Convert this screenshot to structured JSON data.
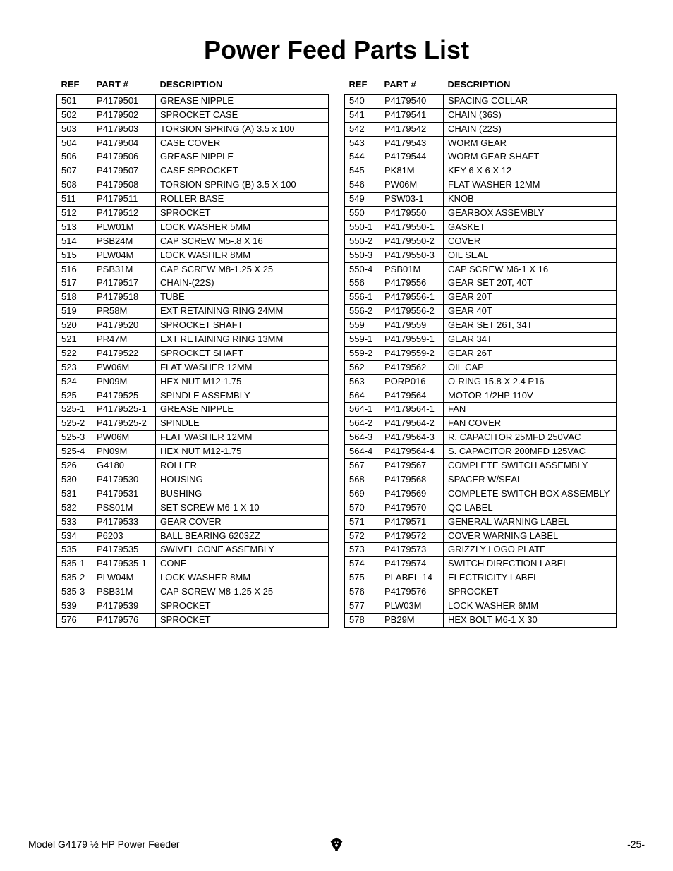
{
  "title": "Power Feed Parts List",
  "columns": {
    "ref": "REF",
    "part": "PART #",
    "desc": "DESCRIPTION"
  },
  "table_style": {
    "border_color": "#000000",
    "font_size_body": 13,
    "font_size_header": 13,
    "title_fontsize": 36,
    "background": "#ffffff",
    "col_widths": {
      "ref": 50,
      "part": 90,
      "desc": 245
    }
  },
  "left_rows": [
    {
      "ref": "501",
      "part": "P4179501",
      "desc": "GREASE NIPPLE"
    },
    {
      "ref": "502",
      "part": "P4179502",
      "desc": "SPROCKET CASE"
    },
    {
      "ref": "503",
      "part": "P4179503",
      "desc": "TORSION SPRING (A) 3.5 x 100"
    },
    {
      "ref": "504",
      "part": "P4179504",
      "desc": "CASE COVER"
    },
    {
      "ref": "506",
      "part": "P4179506",
      "desc": "GREASE NIPPLE"
    },
    {
      "ref": "507",
      "part": "P4179507",
      "desc": "CASE SPROCKET"
    },
    {
      "ref": "508",
      "part": "P4179508",
      "desc": "TORSION SPRING (B) 3.5 X 100"
    },
    {
      "ref": "511",
      "part": "P4179511",
      "desc": "ROLLER BASE"
    },
    {
      "ref": "512",
      "part": "P4179512",
      "desc": "SPROCKET"
    },
    {
      "ref": "513",
      "part": "PLW01M",
      "desc": "LOCK WASHER 5MM"
    },
    {
      "ref": "514",
      "part": "PSB24M",
      "desc": "CAP SCREW M5-.8 X 16"
    },
    {
      "ref": "515",
      "part": "PLW04M",
      "desc": "LOCK WASHER 8MM"
    },
    {
      "ref": "516",
      "part": "PSB31M",
      "desc": "CAP SCREW M8-1.25 X 25"
    },
    {
      "ref": "517",
      "part": "P4179517",
      "desc": "CHAIN-(22S)"
    },
    {
      "ref": "518",
      "part": "P4179518",
      "desc": "TUBE"
    },
    {
      "ref": "519",
      "part": "PR58M",
      "desc": "EXT RETAINING RING 24MM"
    },
    {
      "ref": "520",
      "part": "P4179520",
      "desc": "SPROCKET SHAFT"
    },
    {
      "ref": "521",
      "part": "PR47M",
      "desc": "EXT RETAINING RING 13MM"
    },
    {
      "ref": "522",
      "part": "P4179522",
      "desc": "SPROCKET SHAFT"
    },
    {
      "ref": "523",
      "part": "PW06M",
      "desc": "FLAT WASHER 12MM"
    },
    {
      "ref": "524",
      "part": "PN09M",
      "desc": "HEX NUT M12-1.75"
    },
    {
      "ref": "525",
      "part": "P4179525",
      "desc": "SPINDLE ASSEMBLY"
    },
    {
      "ref": "525-1",
      "part": "P4179525-1",
      "desc": "GREASE NIPPLE"
    },
    {
      "ref": "525-2",
      "part": "P4179525-2",
      "desc": "SPINDLE"
    },
    {
      "ref": "525-3",
      "part": "PW06M",
      "desc": "FLAT WASHER 12MM"
    },
    {
      "ref": "525-4",
      "part": "PN09M",
      "desc": "HEX NUT M12-1.75"
    },
    {
      "ref": "526",
      "part": "G4180",
      "desc": "ROLLER"
    },
    {
      "ref": "530",
      "part": "P4179530",
      "desc": "HOUSING"
    },
    {
      "ref": "531",
      "part": "P4179531",
      "desc": "BUSHING"
    },
    {
      "ref": "532",
      "part": "PSS01M",
      "desc": "SET SCREW M6-1 X 10"
    },
    {
      "ref": "533",
      "part": "P4179533",
      "desc": "GEAR COVER"
    },
    {
      "ref": "534",
      "part": "P6203",
      "desc": "BALL BEARING 6203ZZ"
    },
    {
      "ref": "535",
      "part": "P4179535",
      "desc": "SWIVEL CONE ASSEMBLY"
    },
    {
      "ref": "535-1",
      "part": "P4179535-1",
      "desc": "CONE"
    },
    {
      "ref": "535-2",
      "part": "PLW04M",
      "desc": "LOCK WASHER 8MM"
    },
    {
      "ref": "535-3",
      "part": "PSB31M",
      "desc": "CAP SCREW M8-1.25 X 25"
    },
    {
      "ref": "539",
      "part": "P4179539",
      "desc": "SPROCKET"
    },
    {
      "ref": "576",
      "part": "P4179576",
      "desc": "SPROCKET"
    }
  ],
  "right_rows": [
    {
      "ref": "540",
      "part": "P4179540",
      "desc": "SPACING COLLAR"
    },
    {
      "ref": "541",
      "part": "P4179541",
      "desc": "CHAIN (36S)"
    },
    {
      "ref": "542",
      "part": "P4179542",
      "desc": "CHAIN (22S)"
    },
    {
      "ref": "543",
      "part": "P4179543",
      "desc": "WORM GEAR"
    },
    {
      "ref": "544",
      "part": "P4179544",
      "desc": "WORM GEAR SHAFT"
    },
    {
      "ref": "545",
      "part": "PK81M",
      "desc": "KEY 6 X 6 X 12"
    },
    {
      "ref": "546",
      "part": "PW06M",
      "desc": "FLAT WASHER 12MM"
    },
    {
      "ref": "549",
      "part": "PSW03-1",
      "desc": "KNOB"
    },
    {
      "ref": "550",
      "part": "P4179550",
      "desc": "GEARBOX ASSEMBLY"
    },
    {
      "ref": "550-1",
      "part": "P4179550-1",
      "desc": "GASKET"
    },
    {
      "ref": "550-2",
      "part": "P4179550-2",
      "desc": "COVER"
    },
    {
      "ref": "550-3",
      "part": "P4179550-3",
      "desc": "OIL SEAL"
    },
    {
      "ref": "550-4",
      "part": "PSB01M",
      "desc": "CAP SCREW M6-1 X 16"
    },
    {
      "ref": "556",
      "part": "P4179556",
      "desc": "GEAR SET 20T, 40T"
    },
    {
      "ref": "556-1",
      "part": "P4179556-1",
      "desc": "GEAR 20T"
    },
    {
      "ref": "556-2",
      "part": "P4179556-2",
      "desc": "GEAR 40T"
    },
    {
      "ref": "559",
      "part": "P4179559",
      "desc": "GEAR SET 26T, 34T"
    },
    {
      "ref": "559-1",
      "part": "P4179559-1",
      "desc": "GEAR 34T"
    },
    {
      "ref": "559-2",
      "part": "P4179559-2",
      "desc": "GEAR 26T"
    },
    {
      "ref": "562",
      "part": "P4179562",
      "desc": "OIL CAP"
    },
    {
      "ref": "563",
      "part": "PORP016",
      "desc": "O-RING 15.8 X 2.4 P16"
    },
    {
      "ref": "564",
      "part": "P4179564",
      "desc": "MOTOR 1/2HP 110V"
    },
    {
      "ref": "564-1",
      "part": "P4179564-1",
      "desc": "FAN"
    },
    {
      "ref": "564-2",
      "part": "P4179564-2",
      "desc": "FAN COVER"
    },
    {
      "ref": "564-3",
      "part": "P4179564-3",
      "desc": "R. CAPACITOR 25MFD  250VAC"
    },
    {
      "ref": "564-4",
      "part": "P4179564-4",
      "desc": "S. CAPACITOR 200MFD 125VAC"
    },
    {
      "ref": "567",
      "part": "P4179567",
      "desc": "COMPLETE SWITCH ASSEMBLY"
    },
    {
      "ref": "568",
      "part": "P4179568",
      "desc": "SPACER W/SEAL"
    },
    {
      "ref": "569",
      "part": "P4179569",
      "desc": "COMPLETE SWITCH BOX ASSEMBLY"
    },
    {
      "ref": "570",
      "part": "P4179570",
      "desc": "QC LABEL"
    },
    {
      "ref": "571",
      "part": "P4179571",
      "desc": "GENERAL WARNING LABEL"
    },
    {
      "ref": "572",
      "part": "P4179572",
      "desc": "COVER WARNING LABEL"
    },
    {
      "ref": "573",
      "part": "P4179573",
      "desc": "GRIZZLY LOGO PLATE"
    },
    {
      "ref": "574",
      "part": "P4179574",
      "desc": "SWITCH DIRECTION LABEL"
    },
    {
      "ref": "575",
      "part": "PLABEL-14",
      "desc": "ELECTRICITY LABEL"
    },
    {
      "ref": "576",
      "part": "P4179576",
      "desc": "SPROCKET"
    },
    {
      "ref": "577",
      "part": "PLW03M",
      "desc": "LOCK WASHER 6MM"
    },
    {
      "ref": "578",
      "part": "PB29M",
      "desc": "HEX BOLT M6-1 X 30"
    }
  ],
  "footer": {
    "model_text": "Model G4179 ½ HP Power Feeder",
    "page_number": "-25-"
  }
}
